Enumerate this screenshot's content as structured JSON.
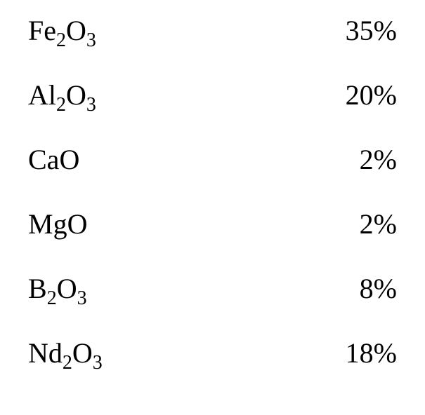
{
  "composition": {
    "rows": [
      {
        "base1": "Fe",
        "sub1": "2",
        "base2": "O",
        "sub2": "3",
        "value": "35%"
      },
      {
        "base1": "Al",
        "sub1": "2",
        "base2": "O",
        "sub2": "3",
        "value": "20%"
      },
      {
        "base1": "Ca",
        "sub1": "",
        "base2": "O",
        "sub2": "",
        "value": "2%"
      },
      {
        "base1": "Mg",
        "sub1": "",
        "base2": "O",
        "sub2": "",
        "value": "2%"
      },
      {
        "base1": "B",
        "sub1": "2",
        "base2": "O",
        "sub2": "3",
        "value": "8%"
      },
      {
        "base1": "Nd",
        "sub1": "2",
        "base2": "O",
        "sub2": "3",
        "value": "18%"
      }
    ]
  }
}
